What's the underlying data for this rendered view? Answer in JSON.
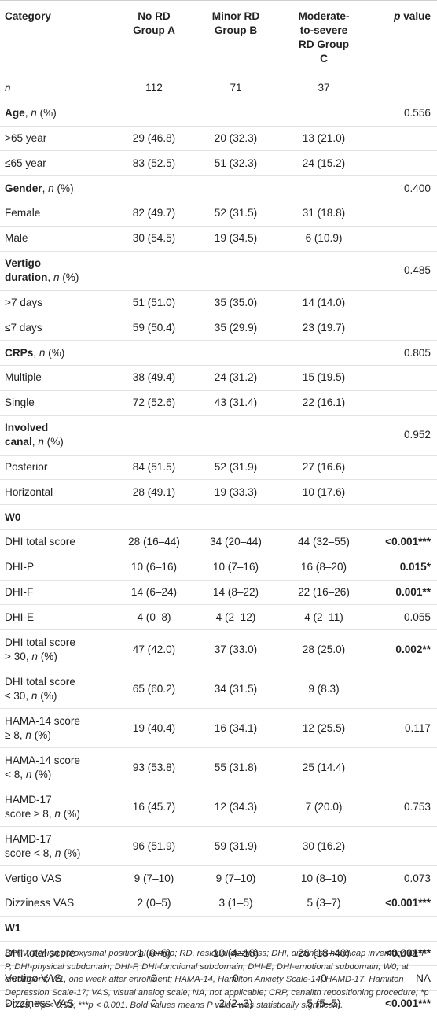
{
  "header": {
    "category": "Category",
    "groupA_l1": "No RD",
    "groupA_l2": "Group A",
    "groupB_l1": "Minor RD",
    "groupB_l2": "Group B",
    "groupC_l1": "Moderate-",
    "groupC_l2": "to-severe",
    "groupC_l3": "RD Group",
    "groupC_l4": "C",
    "p_label_i": "p",
    "p_label": "value"
  },
  "rows": [
    {
      "type": "data",
      "cat": "n",
      "cat_italic": true,
      "a": "112",
      "b": "71",
      "c": "37",
      "p": ""
    },
    {
      "type": "section",
      "cat_b": "Age",
      "cat_rest": ", ",
      "cat_i": "n",
      "cat_tail": " (%)",
      "p": "0.556"
    },
    {
      "type": "data",
      "cat": ">65 year",
      "a": "29 (46.8)",
      "b": "20 (32.3)",
      "c": "13 (21.0)",
      "p": ""
    },
    {
      "type": "data",
      "cat": "≤65 year",
      "a": "83 (52.5)",
      "b": "51 (32.3)",
      "c": "24 (15.2)",
      "p": ""
    },
    {
      "type": "section",
      "cat_b": "Gender",
      "cat_rest": ", ",
      "cat_i": "n",
      "cat_tail": " (%)",
      "p": "0.400"
    },
    {
      "type": "data",
      "cat": "Female",
      "a": "82 (49.7)",
      "b": "52 (31.5)",
      "c": "31 (18.8)",
      "p": ""
    },
    {
      "type": "data",
      "cat": "Male",
      "a": "30 (54.5)",
      "b": "19 (34.5)",
      "c": "6 (10.9)",
      "p": ""
    },
    {
      "type": "section2",
      "cat_b1": "Vertigo",
      "cat_b2": "duration",
      "cat_rest": ", ",
      "cat_i": "n",
      "cat_tail": " (%)",
      "p": "0.485"
    },
    {
      "type": "data",
      "cat": ">7 days",
      "a": "51 (51.0)",
      "b": "35 (35.0)",
      "c": "14 (14.0)",
      "p": ""
    },
    {
      "type": "data",
      "cat": "≤7 days",
      "a": "59 (50.4)",
      "b": "35 (29.9)",
      "c": "23 (19.7)",
      "p": ""
    },
    {
      "type": "section",
      "cat_b": "CRPs",
      "cat_rest": ", ",
      "cat_i": "n",
      "cat_tail": " (%)",
      "p": "0.805"
    },
    {
      "type": "data",
      "cat": "Multiple",
      "a": "38 (49.4)",
      "b": "24 (31.2)",
      "c": "15 (19.5)",
      "p": ""
    },
    {
      "type": "data",
      "cat": "Single",
      "a": "72 (52.6)",
      "b": "43 (31.4)",
      "c": "22 (16.1)",
      "p": ""
    },
    {
      "type": "section2",
      "cat_b1": "Involved",
      "cat_b2": "canal",
      "cat_rest": ", ",
      "cat_i": "n",
      "cat_tail": " (%)",
      "p": "0.952"
    },
    {
      "type": "data",
      "cat": "Posterior",
      "a": "84 (51.5)",
      "b": "52 (31.9)",
      "c": "27 (16.6)",
      "p": ""
    },
    {
      "type": "data",
      "cat": "Horizontal",
      "a": "28 (49.1)",
      "b": "19 (33.3)",
      "c": "10 (17.6)",
      "p": ""
    },
    {
      "type": "heading",
      "cat": "W0"
    },
    {
      "type": "data",
      "cat": "DHI total score",
      "a": "28 (16–44)",
      "b": "34 (20–44)",
      "c": "44 (32–55)",
      "p": "<0.001***",
      "p_bold": true
    },
    {
      "type": "data",
      "cat": "DHI-P",
      "a": "10 (6–16)",
      "b": "10 (7–16)",
      "c": "16 (8–20)",
      "p": "0.015*",
      "p_bold": true
    },
    {
      "type": "data",
      "cat": "DHI-F",
      "a": "14 (6–24)",
      "b": "14 (8–22)",
      "c": "22 (16–26)",
      "p": "0.001**",
      "p_bold": true
    },
    {
      "type": "data",
      "cat": "DHI-E",
      "a": "4 (0–8)",
      "b": "4 (2–12)",
      "c": "4 (2–11)",
      "p": "0.055"
    },
    {
      "type": "two",
      "cat1": "DHI total score",
      "cat2a": "> 30, ",
      "cat2i": "n",
      "cat2b": " (%)",
      "a": "47 (42.0)",
      "b": "37 (33.0)",
      "c": "28 (25.0)",
      "p": "0.002**",
      "p_bold": true
    },
    {
      "type": "two",
      "cat1": "DHI total score",
      "cat2a": "≤ 30, ",
      "cat2i": "n",
      "cat2b": " (%)",
      "a": "65 (60.2)",
      "b": "34 (31.5)",
      "c": "9 (8.3)",
      "p": ""
    },
    {
      "type": "two",
      "cat1": "HAMA-14 score",
      "cat2a": "≥ 8, ",
      "cat2i": "n",
      "cat2b": " (%)",
      "a": "19 (40.4)",
      "b": "16 (34.1)",
      "c": "12 (25.5)",
      "p": "0.117"
    },
    {
      "type": "two",
      "cat1": "HAMA-14 score",
      "cat2a": "< 8, ",
      "cat2i": "n",
      "cat2b": " (%)",
      "a": "93 (53.8)",
      "b": "55 (31.8)",
      "c": "25 (14.4)",
      "p": ""
    },
    {
      "type": "two",
      "cat1": "HAMD-17",
      "cat2a": "score ≥ 8, ",
      "cat2i": "n",
      "cat2b": " (%)",
      "a": "16 (45.7)",
      "b": "12 (34.3)",
      "c": "7 (20.0)",
      "p": "0.753"
    },
    {
      "type": "two",
      "cat1": "HAMD-17",
      "cat2a": "score < 8, ",
      "cat2i": "n",
      "cat2b": " (%)",
      "a": "96 (51.9)",
      "b": "59 (31.9)",
      "c": "30 (16.2)",
      "p": ""
    },
    {
      "type": "data",
      "cat": "Vertigo VAS",
      "a": "9 (7–10)",
      "b": "9 (7–10)",
      "c": "10 (8–10)",
      "p": "0.073"
    },
    {
      "type": "data",
      "cat": "Dizziness VAS",
      "a": "2 (0–5)",
      "b": "3 (1–5)",
      "c": "5 (3–7)",
      "p": "<0.001***",
      "p_bold": true
    },
    {
      "type": "heading",
      "cat": "W1"
    },
    {
      "type": "data",
      "cat": "DHI total score",
      "a": "1 (0–6)",
      "b": "10 (4–18)",
      "c": "26 (18–40)",
      "p": "<0.001***",
      "p_bold": true
    },
    {
      "type": "data",
      "cat": "Vertigo VAS",
      "a": "0",
      "b": "0",
      "c": "0",
      "p": "NA"
    },
    {
      "type": "data",
      "cat": "Dizziness VAS",
      "a": "0",
      "b": "2 (2–3)",
      "c": "5 (5–5)",
      "p": "<0.001***",
      "p_bold": true
    }
  ],
  "footnote": "BPPV, benign paroxysmal positional vertigo; RD, residual dizziness; DHI, dizziness handicap inventory; DHI-P, DHI-physical subdomain; DHI-F, DHI-functional subdomain; DHI-E, DHI-emotional subdomain; W0, at enrollment; W1, one week after enrollment; HAMA-14, Hamilton Anxiety Scale-14; HAMD-17, Hamilton Depression Scale-17; VAS, visual analog scale; NA, not applicable; CRP, canalith repositioning procedure; *p < 0.05; **p < 0.01; ***p < 0.001. Bold values means P value was statistically significant."
}
